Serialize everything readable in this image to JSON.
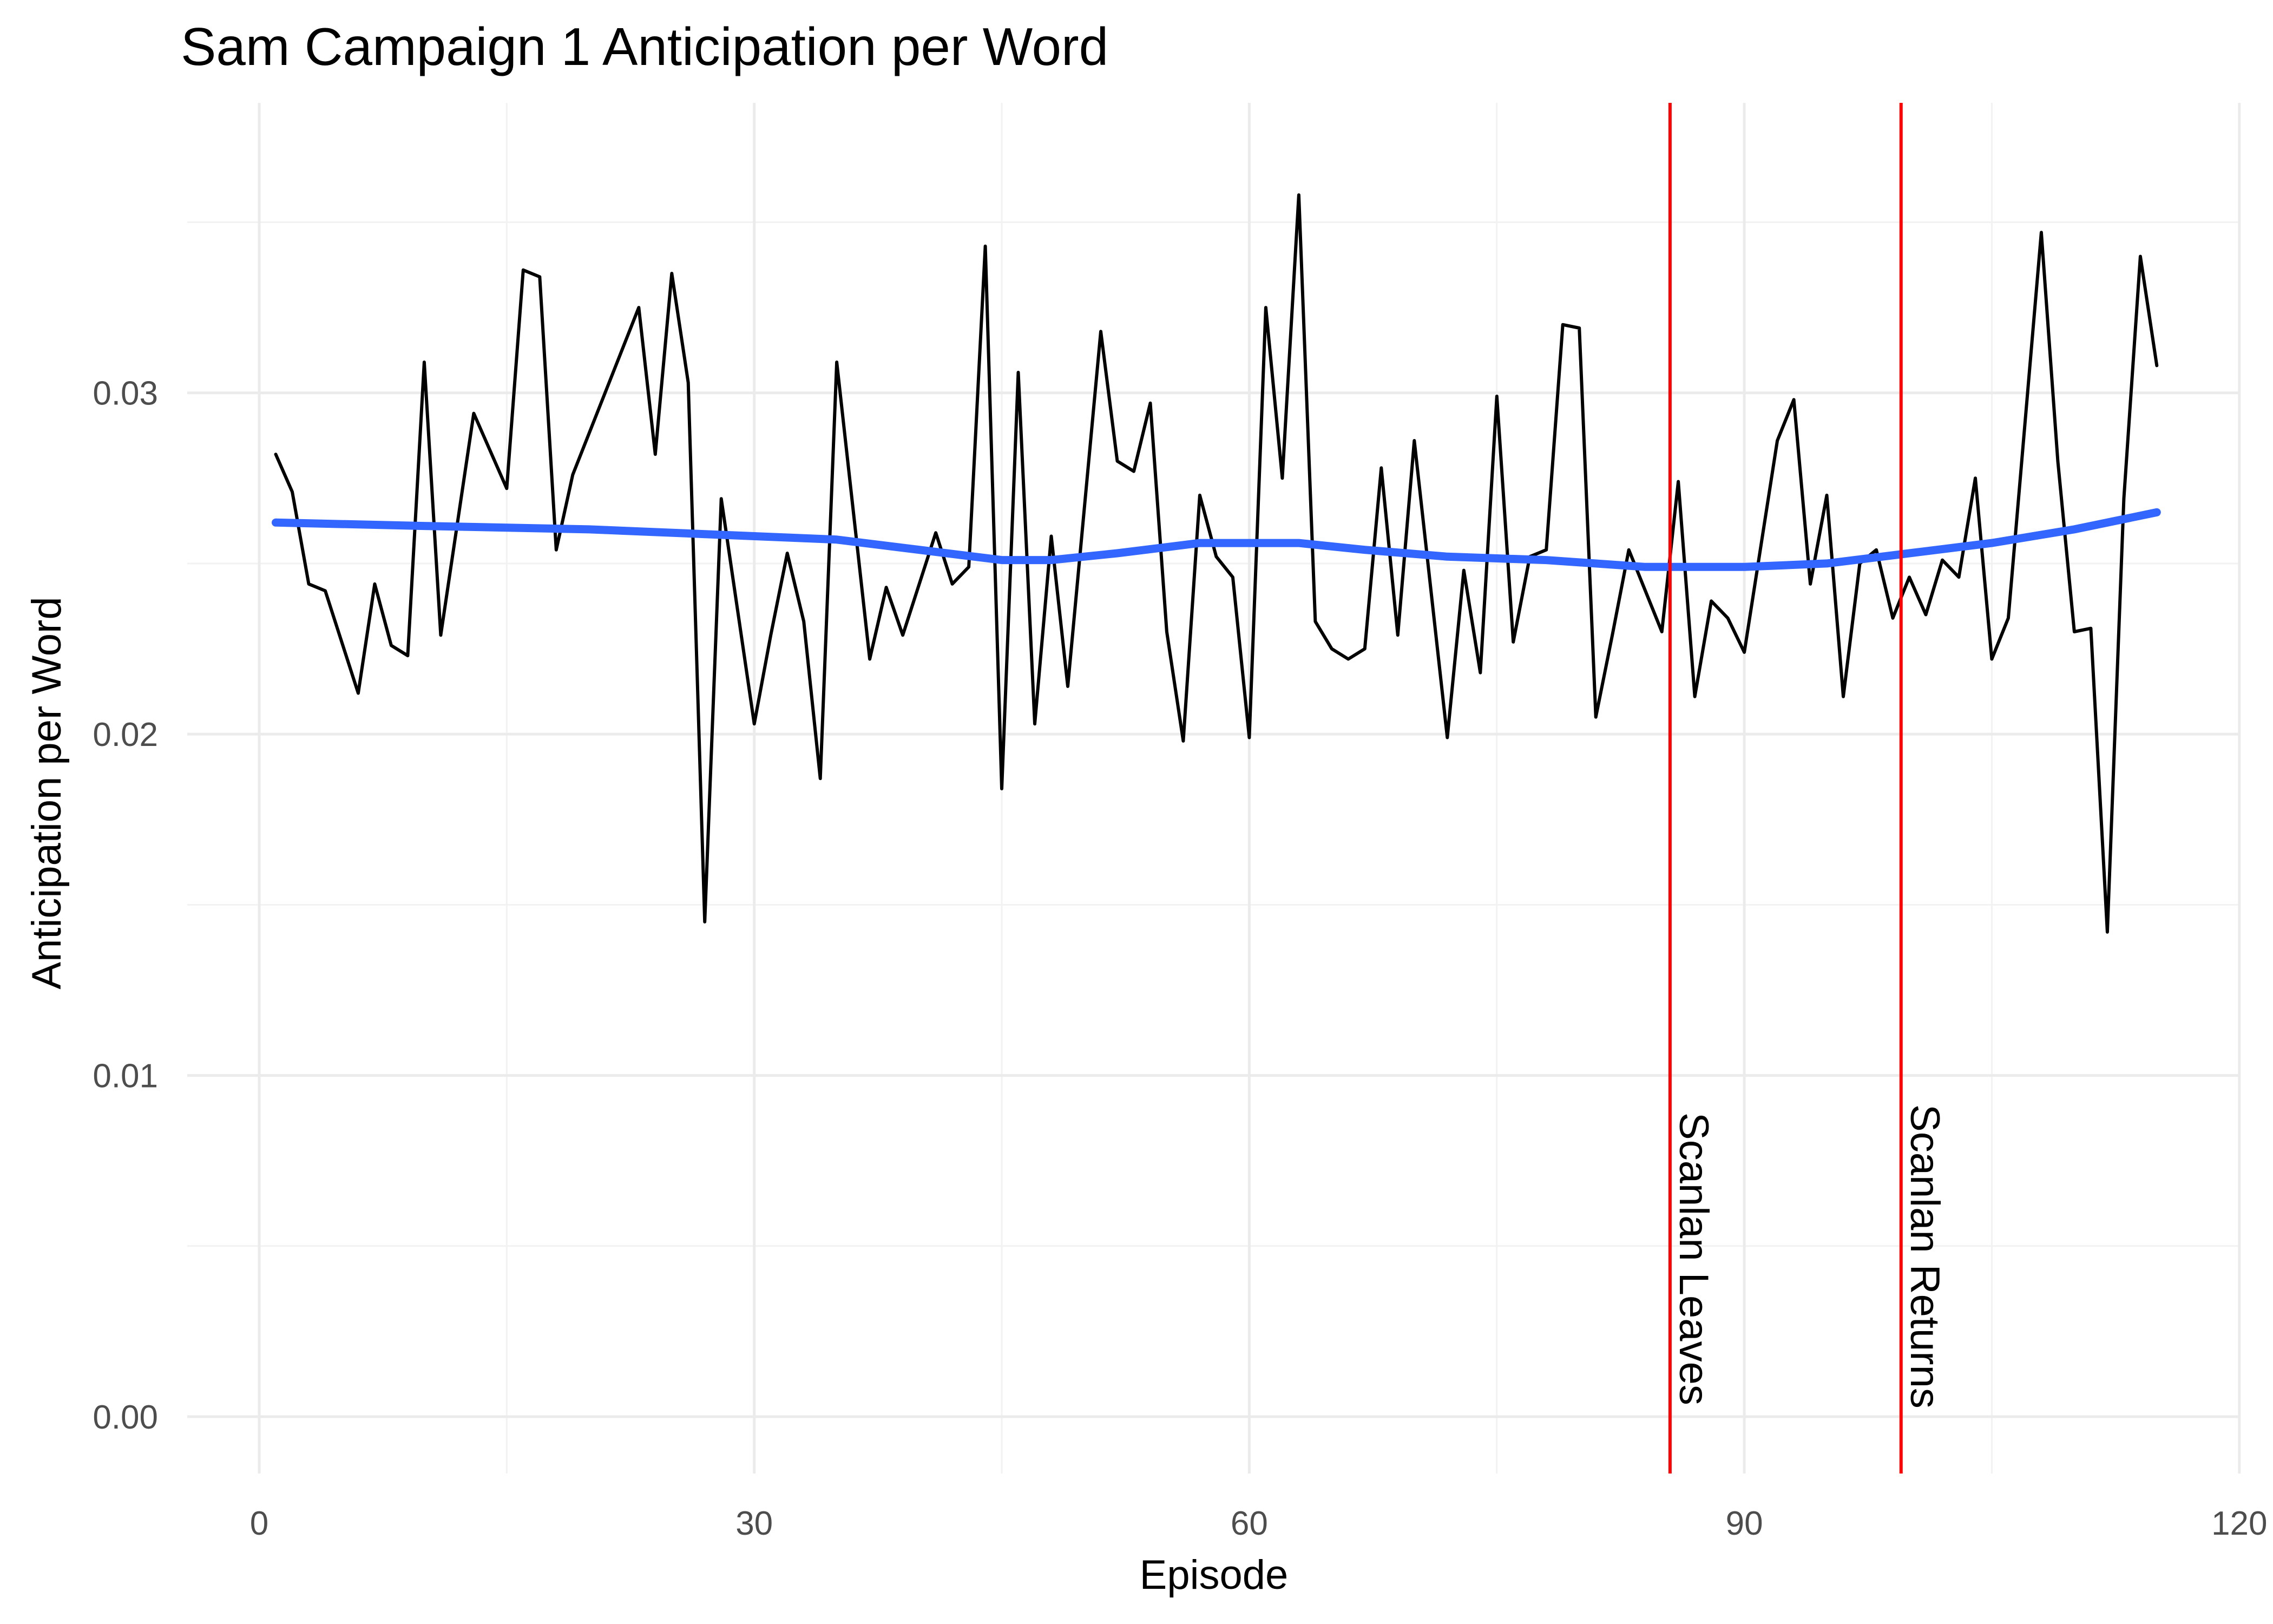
{
  "chart_data": {
    "type": "line",
    "title": "Sam Campaign 1 Anticipation per Word",
    "xlabel": "Episode",
    "ylabel": "Anticipation per Word",
    "xlim": [
      -5,
      120
    ],
    "ylim": [
      -0.0018,
      0.0383
    ],
    "x_ticks": [
      0,
      30,
      60,
      90,
      120
    ],
    "y_ticks": [
      0.0,
      0.01,
      0.02,
      0.03
    ],
    "x_tick_labels": [
      "0",
      "30",
      "60",
      "90",
      "120"
    ],
    "y_tick_labels": [
      "0.00",
      "0.01",
      "0.02",
      "0.03"
    ],
    "grid": true,
    "series": [
      {
        "role": "raw",
        "color": "#000000",
        "x": [
          1,
          2,
          3,
          4,
          6,
          7,
          8,
          9,
          10,
          11,
          13,
          15,
          16,
          17,
          18,
          19,
          23,
          24,
          25,
          26,
          27,
          28,
          30,
          31,
          32,
          33,
          34,
          35,
          37,
          38,
          39,
          41,
          42,
          43,
          44,
          45,
          46,
          47,
          48,
          49,
          51,
          52,
          53,
          54,
          55,
          56,
          57,
          58,
          59,
          60,
          61,
          62,
          63,
          64,
          65,
          66,
          67,
          68,
          69,
          70,
          72,
          73,
          74,
          75,
          76,
          77,
          78,
          79,
          80,
          81,
          82,
          83,
          85,
          86,
          87,
          88,
          89,
          90,
          92,
          93,
          94,
          95,
          96,
          97,
          98,
          99,
          100,
          101,
          102,
          103,
          104,
          105,
          106,
          108,
          109,
          110,
          111,
          112,
          113,
          114,
          115
        ],
        "y": [
          0.0282,
          0.0271,
          0.0244,
          0.0242,
          0.0212,
          0.0244,
          0.0226,
          0.0223,
          0.0309,
          0.0229,
          0.0294,
          0.0272,
          0.0336,
          0.0334,
          0.0254,
          0.0276,
          0.0325,
          0.0282,
          0.0335,
          0.0303,
          0.0145,
          0.0269,
          0.0203,
          0.0229,
          0.0253,
          0.0233,
          0.0187,
          0.0309,
          0.0222,
          0.0243,
          0.0229,
          0.0259,
          0.0244,
          0.0249,
          0.0343,
          0.0184,
          0.0306,
          0.0203,
          0.0258,
          0.0214,
          0.0318,
          0.028,
          0.0277,
          0.0297,
          0.023,
          0.0198,
          0.027,
          0.0252,
          0.0246,
          0.0199,
          0.0325,
          0.0275,
          0.0358,
          0.0233,
          0.0225,
          0.0222,
          0.0225,
          0.0278,
          0.0229,
          0.0286,
          0.0199,
          0.0248,
          0.0218,
          0.0299,
          0.0227,
          0.0252,
          0.0254,
          0.032,
          0.0319,
          0.0205,
          0.0229,
          0.0254,
          0.023,
          0.0274,
          0.0211,
          0.0239,
          0.0234,
          0.0224,
          0.0286,
          0.0298,
          0.0244,
          0.027,
          0.0211,
          0.025,
          0.0254,
          0.0234,
          0.0246,
          0.0235,
          0.0251,
          0.0246,
          0.0275,
          0.0222,
          0.0234,
          0.0347,
          0.028,
          0.023,
          0.0231,
          0.0142,
          0.0269,
          0.034,
          0.0308
        ]
      },
      {
        "role": "smooth",
        "color": "#3366ff",
        "x": [
          1,
          10,
          20,
          30,
          35,
          40,
          45,
          48,
          52,
          57,
          60,
          63,
          67,
          72,
          78,
          84,
          86,
          90,
          95,
          100,
          105,
          110,
          115
        ],
        "y": [
          0.0262,
          0.0261,
          0.026,
          0.0258,
          0.0257,
          0.0254,
          0.0251,
          0.0251,
          0.0253,
          0.0256,
          0.0256,
          0.0256,
          0.0254,
          0.0252,
          0.0251,
          0.0249,
          0.0249,
          0.0249,
          0.025,
          0.0253,
          0.0256,
          0.026,
          0.0265
        ]
      }
    ],
    "vlines": [
      {
        "x": 85.5,
        "label": "Scanlan Leaves",
        "color": "#ff0000"
      },
      {
        "x": 99.5,
        "label": "Scanlan Returns",
        "color": "#ff0000"
      }
    ]
  }
}
